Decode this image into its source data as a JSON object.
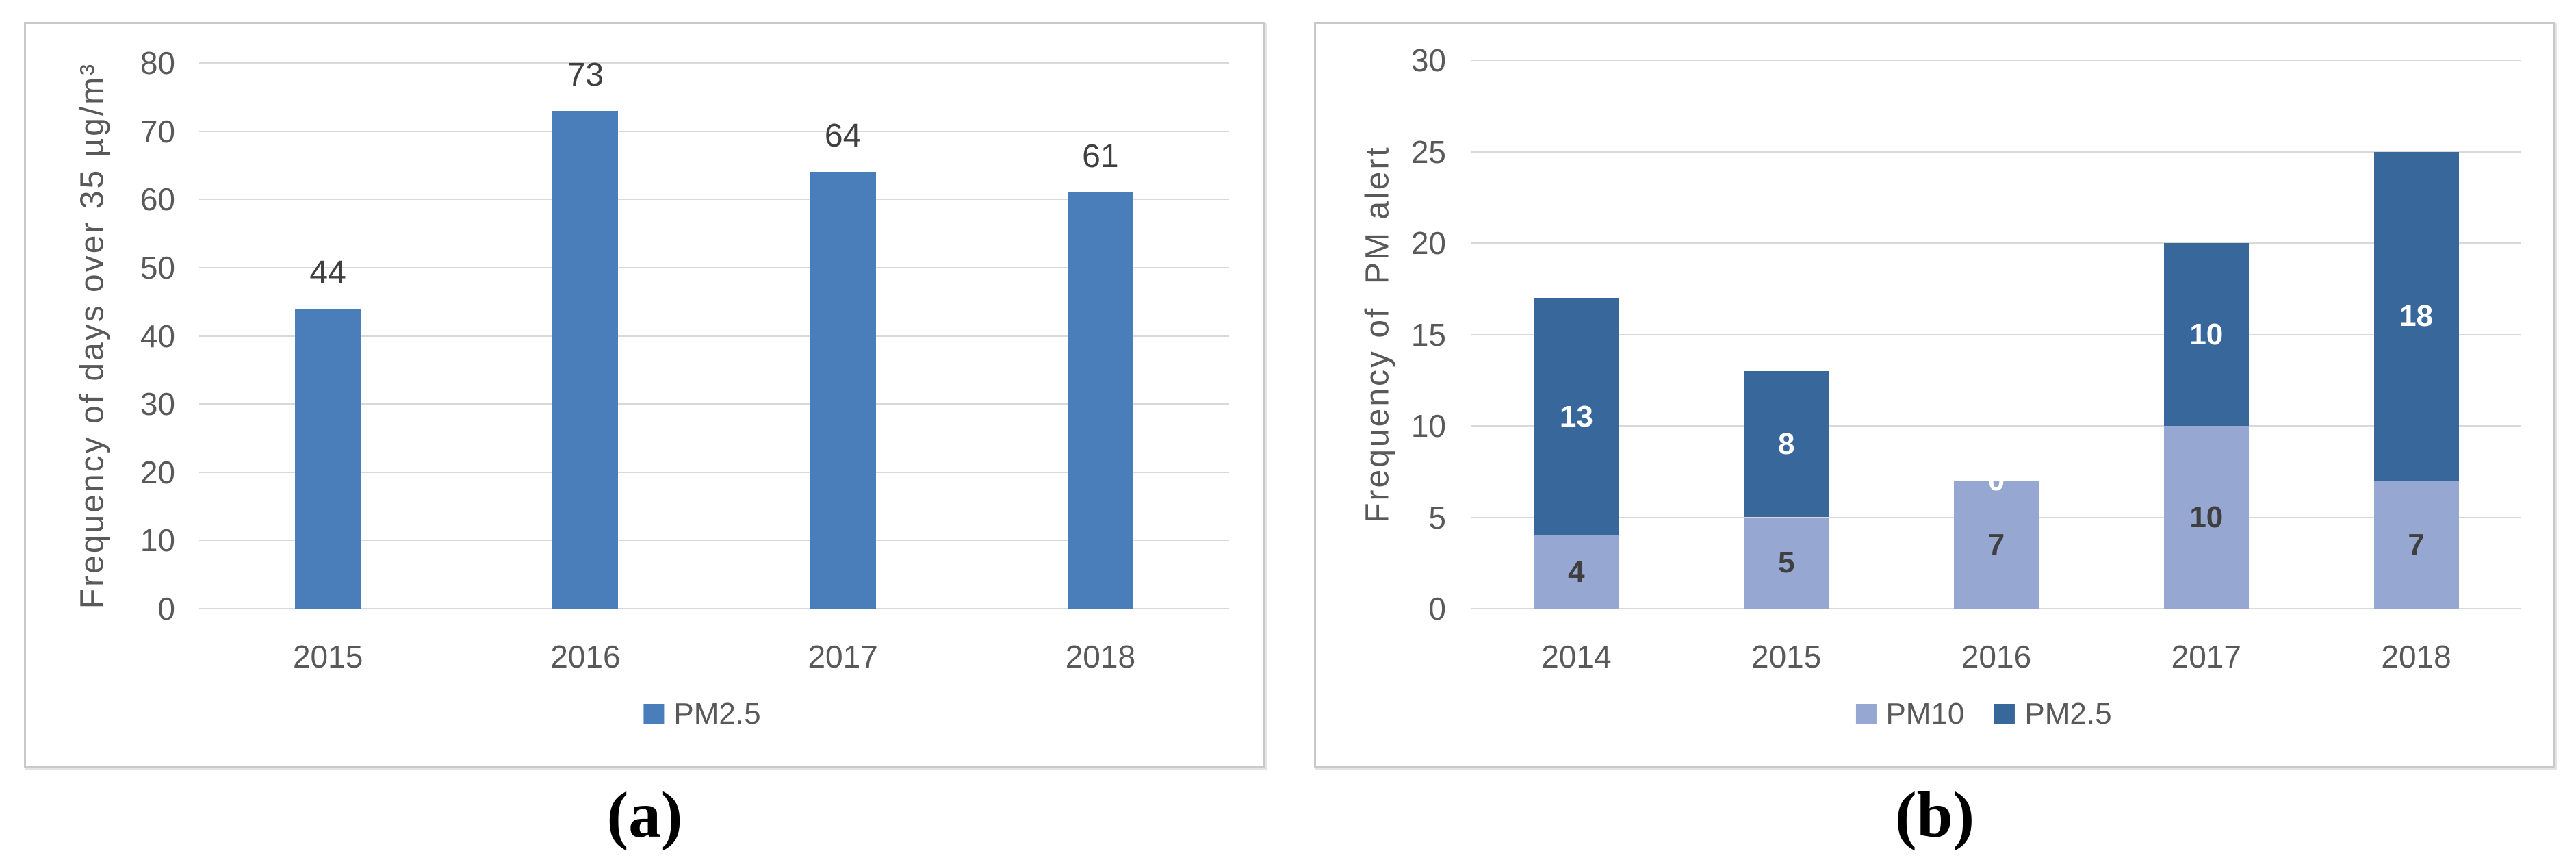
{
  "page": {
    "background": "#ffffff"
  },
  "captions": {
    "a": "(a)",
    "b": "(b)"
  },
  "colors": {
    "bar_blue": "#4a7ebb",
    "pm10_light": "#96a7d1",
    "pm25_dark": "#38679c",
    "gridline": "#d9d9d9",
    "axis_text": "#595959",
    "data_label_text": "#3f3f3f",
    "segment_label_light": "#3f3f3f",
    "segment_label_dark_bg": "#ffffff",
    "panel_border": "#c9c9c9"
  },
  "chart_data": [
    {
      "type": "bar",
      "panel": "a",
      "title": "",
      "ylabel": "Frequency of days over 35 µg/m³",
      "xlabel": "",
      "categories": [
        "2015",
        "2016",
        "2017",
        "2018"
      ],
      "series": [
        {
          "name": "PM2.5",
          "color": "#4a7ebb",
          "values": [
            44,
            73,
            64,
            61
          ]
        }
      ],
      "data_labels": [
        "44",
        "73",
        "64",
        "61"
      ],
      "ylim": [
        0,
        80
      ],
      "ytick_step": 10,
      "yticks": [
        "0",
        "10",
        "20",
        "30",
        "40",
        "50",
        "60",
        "70",
        "80"
      ],
      "grid": true,
      "legend_position": "bottom",
      "legend": [
        {
          "label": "PM2.5",
          "color": "#4a7ebb"
        }
      ]
    },
    {
      "type": "stacked-bar",
      "panel": "b",
      "title": "",
      "ylabel": "Frequency of  PM alert",
      "xlabel": "",
      "categories": [
        "2014",
        "2015",
        "2016",
        "2017",
        "2018"
      ],
      "series": [
        {
          "name": "PM10",
          "color": "#96a7d1",
          "values": [
            4,
            5,
            7,
            10,
            7
          ],
          "label_color": "#3f3f3f"
        },
        {
          "name": "PM2.5",
          "color": "#38679c",
          "values": [
            13,
            8,
            0,
            10,
            18
          ],
          "label_color": "#ffffff"
        }
      ],
      "ylim": [
        0,
        30
      ],
      "ytick_step": 5,
      "yticks": [
        "0",
        "5",
        "10",
        "15",
        "20",
        "25",
        "30"
      ],
      "grid": true,
      "legend_position": "bottom",
      "legend": [
        {
          "label": "PM10",
          "color": "#96a7d1"
        },
        {
          "label": "PM2.5",
          "color": "#38679c"
        }
      ]
    }
  ]
}
